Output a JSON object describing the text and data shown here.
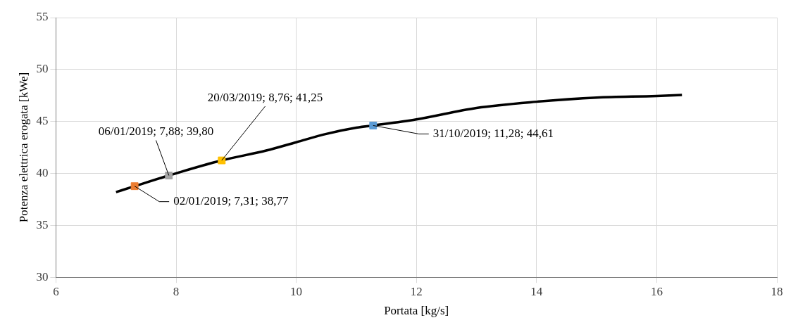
{
  "chart_data": {
    "type": "line",
    "xlabel": "Portata [kg/s]",
    "ylabel": "Potenza elettrica erogata [kWe]",
    "xlim": [
      6,
      18
    ],
    "xticks": [
      6,
      8,
      10,
      12,
      14,
      16,
      18
    ],
    "ylim": [
      30,
      55
    ],
    "yticks": [
      30,
      35,
      40,
      45,
      50,
      55
    ],
    "grid": true,
    "legend": false,
    "series": [
      {
        "color": "#000000",
        "marker": "none",
        "x": [
          7.0,
          7.31,
          7.88,
          8.76,
          9.5,
          10,
          10.5,
          11,
          11.28,
          12,
          13,
          14,
          15,
          16,
          16.42
        ],
        "values": [
          38.2,
          38.77,
          39.8,
          41.25,
          42.2,
          43.0,
          43.8,
          44.4,
          44.61,
          45.2,
          46.3,
          46.9,
          47.3,
          47.45,
          47.55
        ]
      },
      {
        "type": "scatter",
        "color": "#ed7d31",
        "marker": "square",
        "x": [
          7.31
        ],
        "values": [
          38.77
        ]
      },
      {
        "type": "scatter",
        "color": "#a5a5a5",
        "marker": "square",
        "x": [
          7.88
        ],
        "values": [
          39.8
        ]
      },
      {
        "type": "scatter",
        "color": "#ffc000",
        "marker": "square",
        "x": [
          8.76
        ],
        "values": [
          41.25
        ]
      },
      {
        "type": "scatter",
        "color": "#5b9bd5",
        "marker": "square",
        "x": [
          11.28
        ],
        "values": [
          44.61
        ]
      }
    ],
    "annotations": [
      {
        "text": "02/01/2019; 7,31; 38,77",
        "x": 7.31,
        "y": 38.77
      },
      {
        "text": "06/01/2019; 7,88; 39,80",
        "x": 7.88,
        "y": 39.8
      },
      {
        "text": "20/03/2019; 8,76; 41,25",
        "x": 8.76,
        "y": 41.25
      },
      {
        "text": "31/10/2019; 11,28; 44,61",
        "x": 11.28,
        "y": 44.61
      }
    ]
  }
}
